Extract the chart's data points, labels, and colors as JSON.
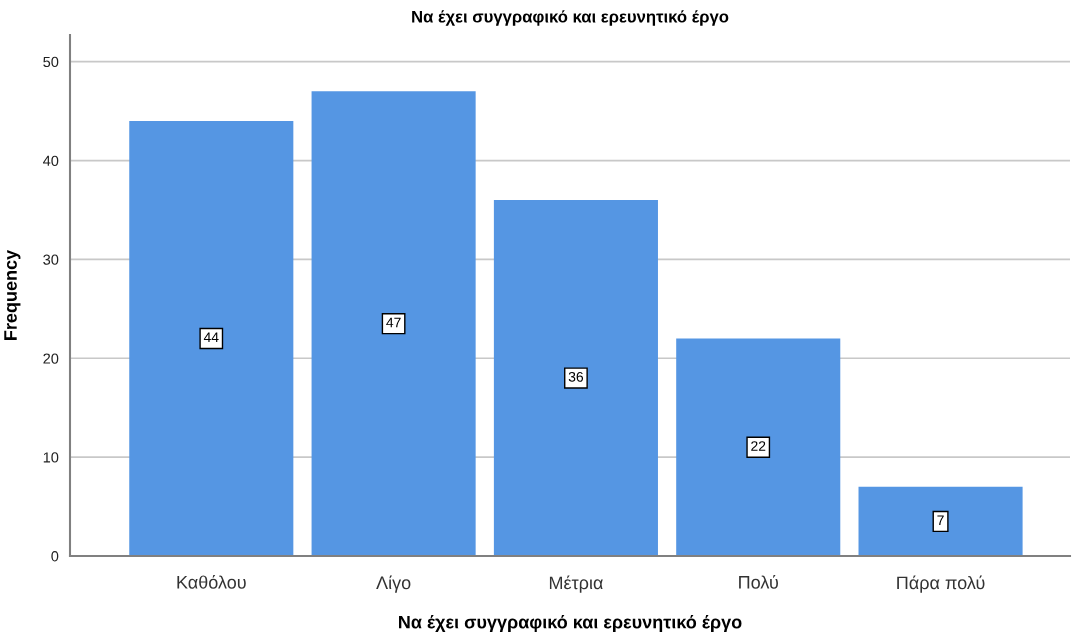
{
  "chart_data": {
    "type": "bar",
    "title": "Να έχει συγγραφικό και ερευνητικό έργο",
    "xlabel": "Να έχει συγγραφικό και ερευνητικό έργο",
    "ylabel": "Frequency",
    "categories": [
      "Καθόλου",
      "Λίγο",
      "Μέτρια",
      "Πολύ",
      "Πάρα πολύ"
    ],
    "values": [
      44,
      47,
      36,
      22,
      7
    ],
    "color": "#5596e3",
    "ylim": [
      0,
      52.7
    ],
    "yticks": [
      0,
      10,
      20,
      30,
      40,
      50
    ],
    "grid": "y",
    "data_labels": true
  }
}
